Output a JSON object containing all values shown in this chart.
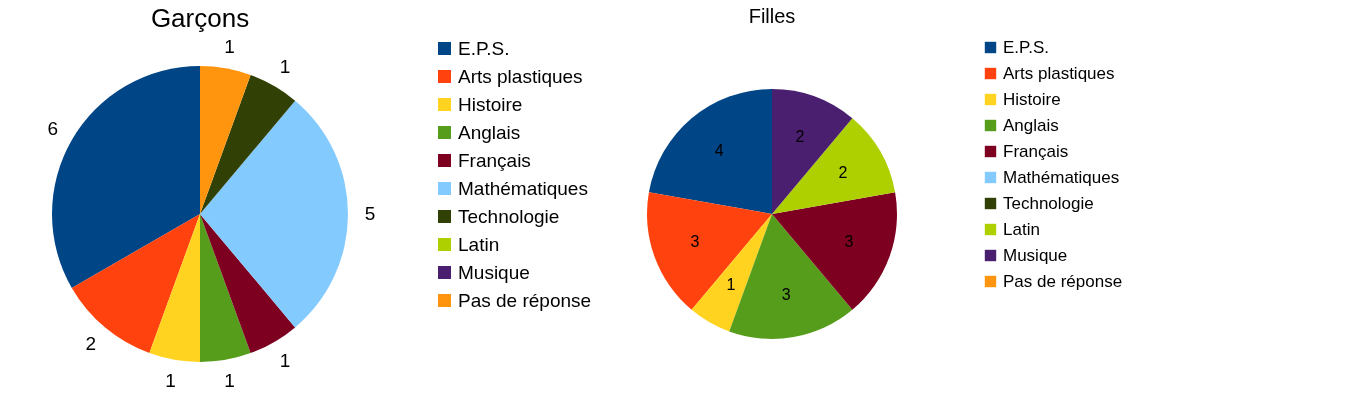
{
  "chart_data": [
    {
      "type": "pie",
      "title": "Garçons",
      "categories": [
        "E.P.S.",
        "Arts plastiques",
        "Histoire",
        "Anglais",
        "Français",
        "Mathématiques",
        "Technologie",
        "Latin",
        "Musique",
        "Pas de réponse"
      ],
      "values": [
        6,
        2,
        1,
        1,
        1,
        5,
        1,
        0,
        0,
        1
      ],
      "colors": [
        "#004586",
        "#ff420e",
        "#ffd320",
        "#579d1c",
        "#7e0021",
        "#83caff",
        "#314004",
        "#aecf00",
        "#4b1f6f",
        "#ff950e"
      ],
      "data_labels": true,
      "legend": "right"
    },
    {
      "type": "pie",
      "title": "Filles",
      "categories": [
        "E.P.S.",
        "Arts plastiques",
        "Histoire",
        "Anglais",
        "Français",
        "Mathématiques",
        "Technologie",
        "Latin",
        "Musique",
        "Pas de réponse"
      ],
      "values": [
        4,
        3,
        1,
        3,
        3,
        0,
        0,
        2,
        2,
        0
      ],
      "colors": [
        "#004586",
        "#ff420e",
        "#ffd320",
        "#579d1c",
        "#7e0021",
        "#83caff",
        "#314004",
        "#aecf00",
        "#4b1f6f",
        "#ff950e"
      ],
      "data_labels": true,
      "legend": "right"
    }
  ]
}
